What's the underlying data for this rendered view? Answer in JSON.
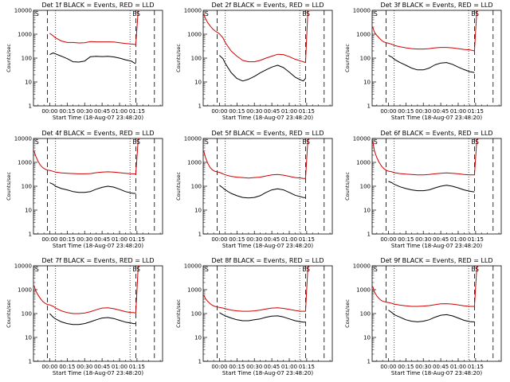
{
  "figure": {
    "xlabel": "Start Time (18-Aug-07 23:48:20)",
    "ylabel": "Counts/sec",
    "x_tick_labels": [
      "00:00",
      "00:15",
      "00:30",
      "00:45",
      "01:00",
      "01:15"
    ],
    "y_tick_labels": [
      "1",
      "10",
      "100",
      "1000",
      "10000"
    ],
    "colors": {
      "events": "#000000",
      "lld": "#d00000",
      "background": "#ffffff"
    }
  },
  "chart_data": [
    {
      "type": "line",
      "title": "Det 1f BLACK = Events, RED = LLD",
      "xlabel": "Start Time (18-Aug-07 23:48:20)",
      "ylabel": "Counts/sec",
      "y_scale": "log",
      "ylim": [
        1,
        10000
      ],
      "xlim": [
        -14,
        97
      ],
      "x_minutes": [
        -13.5,
        -12,
        -10,
        -8,
        -6,
        -4,
        -2,
        0,
        3,
        5,
        10,
        15,
        20,
        25,
        30,
        35,
        40,
        45,
        50,
        55,
        60,
        65,
        70,
        72,
        74,
        76,
        77.5
      ],
      "flags_left": "S",
      "flags_right": "ES",
      "markers": {
        "dashed": [
          -2,
          74,
          90
        ],
        "dotted": [
          5,
          69
        ]
      },
      "series": [
        {
          "role": "events",
          "values": [
            null,
            null,
            null,
            null,
            null,
            null,
            null,
            140,
            165,
            150,
            120,
            95,
            70,
            68,
            75,
            115,
            118,
            116,
            118,
            112,
            100,
            85,
            75,
            65,
            58,
            null,
            null
          ]
        },
        {
          "role": "lld",
          "values": [
            null,
            null,
            null,
            null,
            null,
            null,
            null,
            1100,
            850,
            700,
            520,
            450,
            450,
            430,
            440,
            490,
            480,
            480,
            480,
            470,
            440,
            410,
            390,
            380,
            370,
            12000,
            12000
          ]
        }
      ]
    },
    {
      "type": "line",
      "title": "Det 2f BLACK = Events, RED = LLD",
      "xlabel": "Start Time (18-Aug-07 23:48:20)",
      "ylabel": "Counts/sec",
      "y_scale": "log",
      "ylim": [
        1,
        10000
      ],
      "xlim": [
        -14,
        97
      ],
      "x_minutes": [
        -13.5,
        -12,
        -10,
        -8,
        -6,
        -4,
        -2,
        0,
        3,
        5,
        10,
        15,
        20,
        25,
        30,
        35,
        40,
        45,
        50,
        55,
        60,
        65,
        70,
        72,
        74,
        76,
        77.5
      ],
      "flags_left": "S",
      "flags_right": "ES",
      "markers": {
        "dashed": [
          -2,
          74,
          90
        ],
        "dotted": [
          5,
          69
        ]
      },
      "series": [
        {
          "role": "events",
          "values": [
            null,
            null,
            null,
            null,
            null,
            null,
            null,
            130,
            95,
            60,
            25,
            14,
            11,
            13,
            17,
            24,
            32,
            42,
            50,
            40,
            26,
            16,
            12,
            11,
            14,
            null,
            null
          ]
        },
        {
          "role": "lld",
          "values": [
            7000,
            4500,
            3000,
            2200,
            1700,
            1400,
            1200,
            1050,
            700,
            450,
            200,
            120,
            80,
            70,
            70,
            80,
            100,
            120,
            145,
            140,
            115,
            90,
            75,
            70,
            65,
            12000,
            12000
          ]
        }
      ]
    },
    {
      "type": "line",
      "title": "Det 3f BLACK = Events, RED = LLD",
      "xlabel": "Start Time (18-Aug-07 23:48:20)",
      "ylabel": "Counts/sec",
      "y_scale": "log",
      "ylim": [
        1,
        10000
      ],
      "xlim": [
        -14,
        97
      ],
      "x_minutes": [
        -13.5,
        -12,
        -10,
        -8,
        -6,
        -4,
        -2,
        0,
        3,
        5,
        10,
        15,
        20,
        25,
        30,
        35,
        40,
        45,
        50,
        55,
        60,
        65,
        70,
        72,
        74,
        76,
        77.5
      ],
      "flags_left": "S",
      "flags_right": "ES",
      "markers": {
        "dashed": [
          -2,
          74,
          90
        ],
        "dotted": [
          5,
          69
        ]
      },
      "series": [
        {
          "role": "events",
          "values": [
            null,
            null,
            null,
            null,
            null,
            null,
            null,
            130,
            110,
            90,
            65,
            50,
            38,
            32,
            32,
            38,
            52,
            62,
            65,
            55,
            42,
            33,
            27,
            26,
            25,
            null,
            null
          ]
        },
        {
          "role": "lld",
          "values": [
            2000,
            1200,
            900,
            700,
            560,
            480,
            440,
            420,
            380,
            340,
            300,
            270,
            250,
            240,
            240,
            250,
            270,
            280,
            280,
            270,
            250,
            230,
            220,
            210,
            200,
            12000,
            12000
          ]
        }
      ]
    },
    {
      "type": "line",
      "title": "Det 4f BLACK = Events, RED = LLD",
      "xlabel": "Start Time (18-Aug-07 23:48:20)",
      "ylabel": "Counts/sec",
      "y_scale": "log",
      "ylim": [
        1,
        10000
      ],
      "xlim": [
        -14,
        97
      ],
      "x_minutes": [
        -13.5,
        -12,
        -10,
        -8,
        -6,
        -4,
        -2,
        0,
        3,
        5,
        10,
        15,
        20,
        25,
        30,
        35,
        40,
        45,
        50,
        55,
        60,
        65,
        70,
        72,
        74,
        76,
        77.5
      ],
      "flags_left": "S",
      "flags_right": "ES",
      "markers": {
        "dashed": [
          -2,
          74,
          90
        ],
        "dotted": [
          5,
          69
        ]
      },
      "series": [
        {
          "role": "events",
          "values": [
            null,
            null,
            null,
            null,
            null,
            null,
            null,
            140,
            120,
            100,
            80,
            70,
            60,
            55,
            55,
            60,
            75,
            90,
            100,
            92,
            75,
            60,
            52,
            50,
            50,
            null,
            null
          ]
        },
        {
          "role": "lld",
          "values": [
            3000,
            1800,
            1100,
            750,
            600,
            520,
            470,
            460,
            420,
            390,
            360,
            350,
            340,
            330,
            330,
            340,
            370,
            390,
            400,
            390,
            370,
            350,
            330,
            330,
            320,
            9000,
            10000
          ]
        }
      ]
    },
    {
      "type": "line",
      "title": "Det 5f BLACK = Events, RED = LLD",
      "xlabel": "Start Time (18-Aug-07 23:48:20)",
      "ylabel": "Counts/sec",
      "y_scale": "log",
      "ylim": [
        1,
        10000
      ],
      "xlim": [
        -14,
        97
      ],
      "x_minutes": [
        -13.5,
        -12,
        -10,
        -8,
        -6,
        -4,
        -2,
        0,
        3,
        5,
        10,
        15,
        20,
        25,
        30,
        35,
        40,
        45,
        50,
        55,
        60,
        65,
        70,
        72,
        74,
        76,
        77.5
      ],
      "flags_left": "S",
      "flags_right": "ES",
      "markers": {
        "dashed": [
          -2,
          74,
          90
        ],
        "dotted": [
          5,
          69
        ]
      },
      "series": [
        {
          "role": "events",
          "values": [
            null,
            null,
            null,
            null,
            null,
            null,
            null,
            110,
            85,
            70,
            50,
            40,
            34,
            32,
            34,
            40,
            55,
            70,
            78,
            70,
            55,
            42,
            36,
            34,
            33,
            null,
            null
          ]
        },
        {
          "role": "lld",
          "values": [
            3000,
            1600,
            900,
            600,
            480,
            420,
            400,
            380,
            330,
            300,
            260,
            240,
            230,
            220,
            230,
            240,
            270,
            300,
            310,
            290,
            260,
            230,
            220,
            210,
            210,
            9000,
            10000
          ]
        }
      ]
    },
    {
      "type": "line",
      "title": "Det 6f BLACK = Events, RED = LLD",
      "xlabel": "Start Time (18-Aug-07 23:48:20)",
      "ylabel": "Counts/sec",
      "y_scale": "log",
      "ylim": [
        1,
        10000
      ],
      "xlim": [
        -14,
        97
      ],
      "x_minutes": [
        -13.5,
        -12,
        -10,
        -8,
        -6,
        -4,
        -2,
        0,
        3,
        5,
        10,
        15,
        20,
        25,
        30,
        35,
        40,
        45,
        50,
        55,
        60,
        65,
        70,
        72,
        74,
        76,
        77.5
      ],
      "flags_left": "S",
      "flags_right": "ES",
      "markers": {
        "dashed": [
          -2,
          74,
          90
        ],
        "dotted": [
          5,
          69
        ]
      },
      "series": [
        {
          "role": "events",
          "values": [
            null,
            null,
            null,
            null,
            null,
            null,
            null,
            160,
            140,
            120,
            95,
            80,
            70,
            65,
            65,
            70,
            85,
            100,
            110,
            100,
            85,
            70,
            62,
            60,
            58,
            null,
            null
          ]
        },
        {
          "role": "lld",
          "values": [
            8000,
            3000,
            1600,
            1000,
            700,
            550,
            470,
            430,
            400,
            370,
            340,
            320,
            310,
            300,
            300,
            310,
            330,
            350,
            360,
            350,
            330,
            310,
            300,
            300,
            300,
            9000,
            10000
          ]
        }
      ]
    },
    {
      "type": "line",
      "title": "Det 7f BLACK = Events, RED = LLD",
      "xlabel": "Start Time (18-Aug-07 23:48:20)",
      "ylabel": "Counts/sec",
      "y_scale": "log",
      "ylim": [
        1,
        10000
      ],
      "xlim": [
        -14,
        97
      ],
      "x_minutes": [
        -13.5,
        -12,
        -10,
        -8,
        -6,
        -4,
        -2,
        0,
        3,
        5,
        10,
        15,
        20,
        25,
        30,
        35,
        40,
        45,
        50,
        55,
        60,
        65,
        70,
        72,
        74,
        76,
        77.5
      ],
      "flags_left": "S",
      "flags_right": "ES",
      "markers": {
        "dashed": [
          -2,
          74,
          90
        ],
        "dotted": [
          5,
          69
        ]
      },
      "series": [
        {
          "role": "events",
          "values": [
            null,
            null,
            null,
            null,
            null,
            null,
            null,
            100,
            70,
            60,
            45,
            38,
            35,
            35,
            38,
            45,
            55,
            65,
            68,
            62,
            52,
            44,
            40,
            38,
            38,
            null,
            null
          ]
        },
        {
          "role": "lld",
          "values": [
            1500,
            900,
            600,
            420,
            320,
            270,
            240,
            230,
            200,
            170,
            130,
            110,
            100,
            100,
            105,
            120,
            145,
            170,
            175,
            160,
            140,
            120,
            110,
            110,
            105,
            9000,
            10000
          ]
        }
      ]
    },
    {
      "type": "line",
      "title": "Det 8f BLACK = Events, RED = LLD",
      "xlabel": "Start Time (18-Aug-07 23:48:20)",
      "ylabel": "Counts/sec",
      "y_scale": "log",
      "ylim": [
        1,
        10000
      ],
      "xlim": [
        -14,
        97
      ],
      "x_minutes": [
        -13.5,
        -12,
        -10,
        -8,
        -6,
        -4,
        -2,
        0,
        3,
        5,
        10,
        15,
        20,
        25,
        30,
        35,
        40,
        45,
        50,
        55,
        60,
        65,
        70,
        72,
        74,
        76,
        77.5
      ],
      "flags_left": "S",
      "flags_right": "ES",
      "markers": {
        "dashed": [
          -2,
          74,
          90
        ],
        "dotted": [
          5,
          69
        ]
      },
      "series": [
        {
          "role": "events",
          "values": [
            null,
            null,
            null,
            null,
            null,
            null,
            null,
            110,
            90,
            80,
            65,
            55,
            50,
            50,
            55,
            60,
            70,
            78,
            80,
            72,
            60,
            50,
            45,
            44,
            44,
            null,
            null
          ]
        },
        {
          "role": "lld",
          "values": [
            600,
            420,
            320,
            260,
            220,
            200,
            190,
            180,
            170,
            160,
            140,
            130,
            125,
            125,
            130,
            140,
            155,
            170,
            175,
            165,
            150,
            135,
            125,
            125,
            125,
            9000,
            10000
          ]
        }
      ]
    },
    {
      "type": "line",
      "title": "Det 9f BLACK = Events, RED = LLD",
      "xlabel": "Start Time (18-Aug-07 23:48:20)",
      "ylabel": "Counts/sec",
      "y_scale": "log",
      "ylim": [
        1,
        10000
      ],
      "xlim": [
        -14,
        97
      ],
      "x_minutes": [
        -13.5,
        -12,
        -10,
        -8,
        -6,
        -4,
        -2,
        0,
        3,
        5,
        10,
        15,
        20,
        25,
        30,
        35,
        40,
        45,
        50,
        55,
        60,
        65,
        70,
        72,
        74,
        76,
        77.5
      ],
      "flags_left": "S",
      "flags_right": "ES",
      "markers": {
        "dashed": [
          -2,
          74,
          90
        ],
        "dotted": [
          5,
          69
        ]
      },
      "series": [
        {
          "role": "events",
          "values": [
            null,
            null,
            null,
            null,
            null,
            null,
            null,
            140,
            110,
            90,
            70,
            55,
            48,
            45,
            48,
            55,
            70,
            85,
            90,
            80,
            65,
            52,
            46,
            45,
            45,
            null,
            null
          ]
        },
        {
          "role": "lld",
          "values": [
            1400,
            800,
            550,
            420,
            350,
            320,
            300,
            290,
            270,
            250,
            225,
            210,
            200,
            200,
            205,
            215,
            235,
            255,
            260,
            250,
            230,
            210,
            200,
            200,
            200,
            9000,
            10000
          ]
        }
      ]
    }
  ]
}
